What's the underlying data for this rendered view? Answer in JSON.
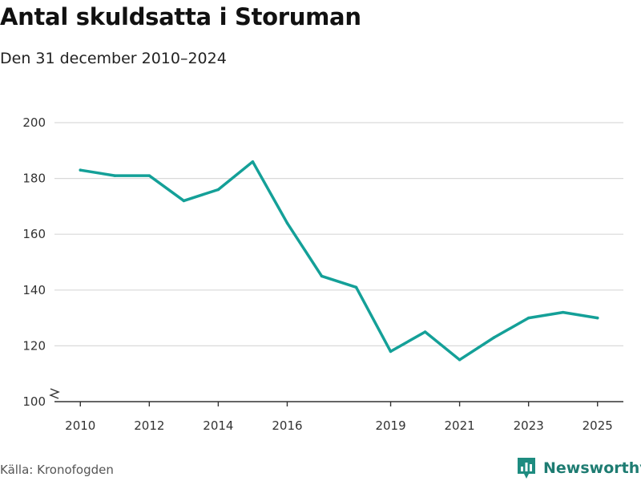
{
  "title": "Antal skuldsatta i Storuman",
  "subtitle": "Den 31 december 2010–2024",
  "source": "Källa: Kronofogden",
  "brand": {
    "name": "Newsworthy",
    "icon": "bar-chart-logo-icon",
    "color": "#1e8c80"
  },
  "colors": {
    "line": "#14a098",
    "grid": "#d9d9d9",
    "axis": "#333333"
  },
  "chart_data": {
    "type": "line",
    "title": "Antal skuldsatta i Storuman",
    "subtitle": "Den 31 december 2010–2024",
    "xlabel": "",
    "ylabel": "",
    "x": [
      2010,
      2011,
      2012,
      2013,
      2014,
      2015,
      2016,
      2017,
      2018,
      2019,
      2020,
      2021,
      2022,
      2023,
      2024,
      2025
    ],
    "series": [
      {
        "name": "Antal skuldsatta",
        "values": [
          183,
          181,
          181,
          172,
          176,
          186,
          164,
          145,
          141,
          118,
          125,
          115,
          123,
          130,
          132,
          130
        ]
      }
    ],
    "xticks": [
      "2010",
      "2012",
      "2014",
      "2016",
      "2019",
      "2021",
      "2023",
      "2025"
    ],
    "yticks": [
      100,
      120,
      140,
      160,
      180,
      200
    ],
    "ylim": [
      100,
      200
    ],
    "xlim": [
      2009.25,
      2025.75
    ],
    "grid": true,
    "axis_break": true
  }
}
